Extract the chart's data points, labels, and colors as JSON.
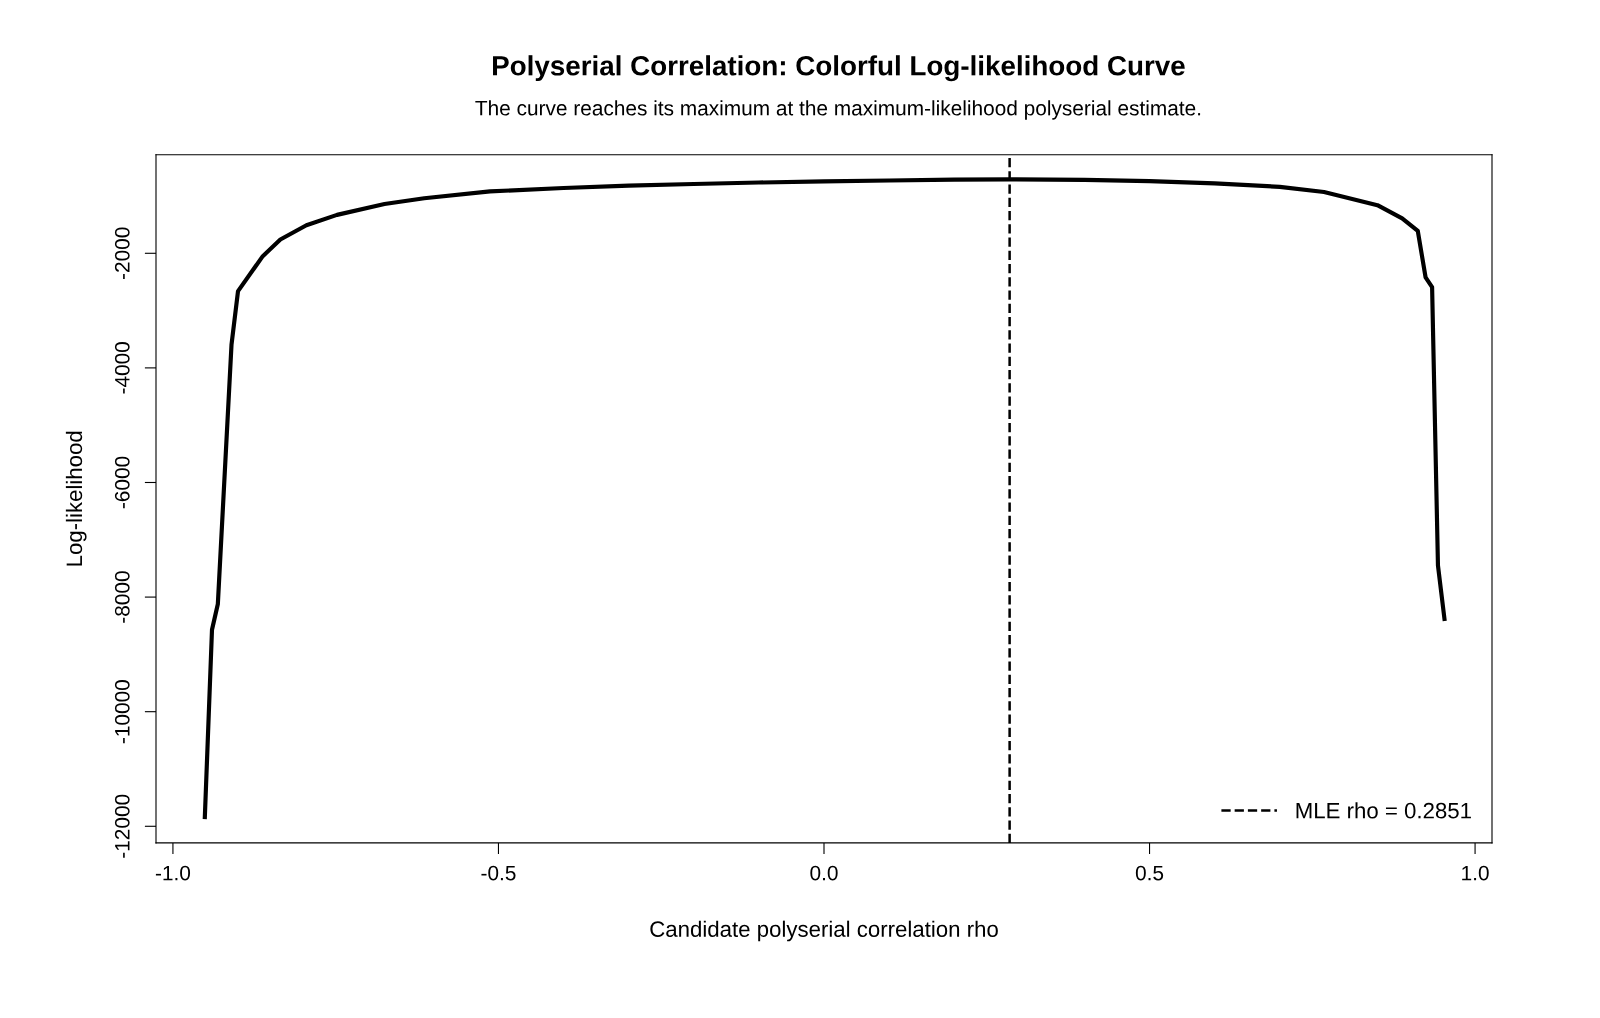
{
  "chart_data": {
    "type": "line",
    "title": "Polyserial Correlation: Colorful Log-likelihood Curve",
    "subtitle": "The curve reaches its maximum at the maximum-likelihood polyserial estimate.",
    "xlabel": "Candidate polyserial correlation rho",
    "ylabel": "Log-likelihood",
    "series": [
      {
        "color": "#000000",
        "x": [
          -0.951,
          -0.94,
          -0.931,
          -0.91,
          -0.9,
          -0.862,
          -0.835,
          -0.795,
          -0.748,
          -0.675,
          -0.614,
          -0.513,
          -0.4,
          -0.3,
          -0.2,
          -0.1,
          0.0,
          0.1,
          0.2,
          0.285,
          0.4,
          0.5,
          0.6,
          0.7,
          0.768,
          0.85,
          0.888,
          0.912,
          0.924,
          0.934,
          0.943,
          0.953
        ],
        "values": [
          -11840,
          -8570,
          -8120,
          -3590,
          -2660,
          -2050,
          -1760,
          -1510,
          -1330,
          -1140,
          -1040,
          -920,
          -860,
          -820,
          -790,
          -765,
          -745,
          -730,
          -715,
          -710,
          -720,
          -740,
          -780,
          -840,
          -930,
          -1160,
          -1390,
          -1610,
          -2420,
          -2590,
          -7450,
          -8380
        ]
      }
    ],
    "ref_lines": [
      {
        "axis": "x",
        "value": 0.2851,
        "label": "MLE rho = 0.2851",
        "color": "#000000",
        "line_style": "dashed"
      }
    ],
    "xlim": [
      -1.026,
      1.026
    ],
    "ylim": [
      -12290,
      -280
    ],
    "xticks": [
      {
        "value": -1.0,
        "label": "-1.0"
      },
      {
        "value": -0.5,
        "label": "-0.5"
      },
      {
        "value": 0.0,
        "label": "0.0"
      },
      {
        "value": 0.5,
        "label": "0.5"
      },
      {
        "value": 1.0,
        "label": "1.0"
      }
    ],
    "yticks": [
      -12000,
      -10000,
      -8000,
      -6000,
      -4000,
      -2000
    ],
    "grid": false,
    "legend": "bottom right",
    "marker": "none",
    "line_style": "solid"
  }
}
